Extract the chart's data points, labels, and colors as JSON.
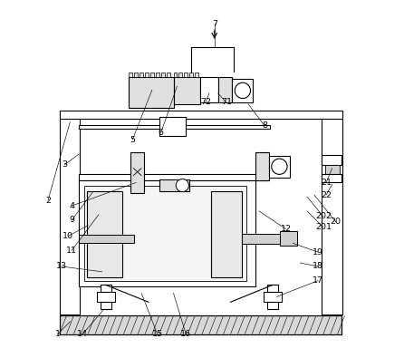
{
  "title": "",
  "bg_color": "#ffffff",
  "line_color": "#000000",
  "gray_color": "#888888",
  "light_gray": "#cccccc",
  "figsize": [
    4.46,
    3.95
  ],
  "dpi": 100,
  "label_coords": {
    "1": [
      0.095,
      0.935,
      0.13,
      0.9
    ],
    "2": [
      0.068,
      0.56,
      0.13,
      0.34
    ],
    "3": [
      0.115,
      0.46,
      0.155,
      0.43
    ],
    "4": [
      0.135,
      0.575,
      0.315,
      0.51
    ],
    "5": [
      0.305,
      0.39,
      0.36,
      0.25
    ],
    "6": [
      0.385,
      0.37,
      0.43,
      0.24
    ],
    "7": [
      0.535,
      0.065,
      0.535,
      0.13
    ],
    "8": [
      0.675,
      0.35,
      0.63,
      0.29
    ],
    "9": [
      0.135,
      0.615,
      0.195,
      0.535
    ],
    "10": [
      0.125,
      0.66,
      0.18,
      0.63
    ],
    "11": [
      0.135,
      0.7,
      0.21,
      0.6
    ],
    "12": [
      0.735,
      0.64,
      0.66,
      0.59
    ],
    "13": [
      0.105,
      0.745,
      0.22,
      0.76
    ],
    "14": [
      0.165,
      0.935,
      0.225,
      0.865
    ],
    "15": [
      0.375,
      0.935,
      0.33,
      0.82
    ],
    "16": [
      0.455,
      0.935,
      0.42,
      0.82
    ],
    "17": [
      0.825,
      0.785,
      0.71,
      0.83
    ],
    "18": [
      0.825,
      0.745,
      0.775,
      0.735
    ],
    "19": [
      0.825,
      0.705,
      0.755,
      0.68
    ],
    "20": [
      0.875,
      0.62,
      0.815,
      0.545
    ],
    "201": [
      0.84,
      0.635,
      0.795,
      0.59
    ],
    "202": [
      0.84,
      0.605,
      0.795,
      0.55
    ],
    "21": [
      0.848,
      0.51,
      0.865,
      0.47
    ],
    "22": [
      0.848,
      0.545,
      0.865,
      0.515
    ],
    "71": [
      0.568,
      0.285,
      0.545,
      0.26
    ],
    "72": [
      0.51,
      0.285,
      0.52,
      0.26
    ]
  }
}
